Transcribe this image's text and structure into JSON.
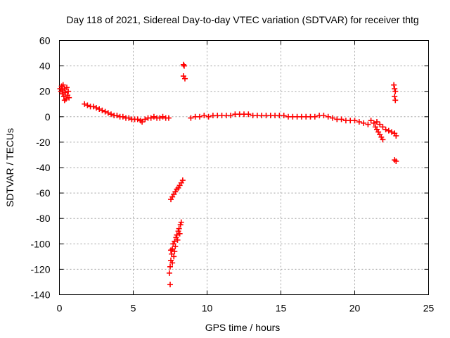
{
  "chart_data": {
    "type": "scatter",
    "title": "Day 118 of 2021, Sidereal Day-to-day VTEC variation (SDTVAR) for receiver thtg",
    "xlabel": "GPS time / hours",
    "ylabel": "SDTVAR / TECUs",
    "xlim": [
      0,
      25
    ],
    "ylim": [
      -140,
      60
    ],
    "xticks": [
      0,
      5,
      10,
      15,
      20,
      25
    ],
    "yticks": [
      60,
      40,
      20,
      0,
      -20,
      -40,
      -60,
      -80,
      -100,
      -120,
      -140
    ],
    "grid": true,
    "marker": "plus",
    "color": "#ff0000",
    "series": [
      {
        "points": [
          [
            0.05,
            22
          ],
          [
            0.1,
            20
          ],
          [
            0.15,
            24
          ],
          [
            0.2,
            18
          ],
          [
            0.25,
            25
          ],
          [
            0.3,
            16
          ],
          [
            0.35,
            22
          ],
          [
            0.4,
            19
          ],
          [
            0.45,
            14
          ],
          [
            0.5,
            23
          ],
          [
            0.55,
            17
          ],
          [
            0.6,
            20
          ],
          [
            0.65,
            15
          ],
          [
            0.2,
            21
          ],
          [
            0.35,
            13
          ],
          [
            1.7,
            10
          ],
          [
            1.9,
            9
          ],
          [
            2.1,
            8
          ],
          [
            2.3,
            8
          ],
          [
            2.5,
            7
          ],
          [
            2.7,
            6
          ],
          [
            2.9,
            5
          ],
          [
            3.1,
            4
          ],
          [
            3.3,
            3
          ],
          [
            3.5,
            2
          ],
          [
            3.7,
            1
          ],
          [
            3.9,
            1
          ],
          [
            4.1,
            0
          ],
          [
            4.3,
            0
          ],
          [
            4.5,
            -1
          ],
          [
            4.7,
            -1
          ],
          [
            4.9,
            -2
          ],
          [
            5.1,
            -2
          ],
          [
            5.3,
            -2
          ],
          [
            5.5,
            -3
          ],
          [
            5.6,
            -4
          ],
          [
            5.8,
            -2
          ],
          [
            6.0,
            -1
          ],
          [
            6.2,
            -1
          ],
          [
            6.4,
            0
          ],
          [
            6.6,
            -1
          ],
          [
            6.8,
            -1
          ],
          [
            7.0,
            0
          ],
          [
            7.2,
            -1
          ],
          [
            7.4,
            -1
          ],
          [
            7.55,
            -65
          ],
          [
            7.65,
            -63
          ],
          [
            7.75,
            -61
          ],
          [
            7.85,
            -59
          ],
          [
            7.95,
            -57
          ],
          [
            8.05,
            -56
          ],
          [
            8.15,
            -54
          ],
          [
            8.25,
            -52
          ],
          [
            8.35,
            -50
          ],
          [
            7.45,
            -123
          ],
          [
            7.5,
            -118
          ],
          [
            7.55,
            -113
          ],
          [
            7.6,
            -108
          ],
          [
            7.65,
            -104
          ],
          [
            7.7,
            -100
          ],
          [
            7.75,
            -110
          ],
          [
            7.8,
            -98
          ],
          [
            7.85,
            -102
          ],
          [
            7.9,
            -95
          ],
          [
            7.95,
            -93
          ],
          [
            8.0,
            -97
          ],
          [
            8.05,
            -90
          ],
          [
            8.1,
            -88
          ],
          [
            8.15,
            -92
          ],
          [
            8.2,
            -85
          ],
          [
            8.25,
            -83
          ],
          [
            7.55,
            -105
          ],
          [
            7.65,
            -115
          ],
          [
            7.8,
            -106
          ],
          [
            7.5,
            -132
          ],
          [
            8.4,
            41
          ],
          [
            8.45,
            40
          ],
          [
            8.4,
            32
          ],
          [
            8.5,
            30
          ],
          [
            8.9,
            -1
          ],
          [
            9.2,
            0
          ],
          [
            9.5,
            0
          ],
          [
            9.8,
            1
          ],
          [
            10.1,
            0
          ],
          [
            10.4,
            1
          ],
          [
            10.7,
            1
          ],
          [
            11.0,
            1
          ],
          [
            11.3,
            1
          ],
          [
            11.6,
            1
          ],
          [
            11.9,
            2
          ],
          [
            12.2,
            2
          ],
          [
            12.5,
            2
          ],
          [
            12.8,
            2
          ],
          [
            13.1,
            1
          ],
          [
            13.4,
            1
          ],
          [
            13.7,
            1
          ],
          [
            14.0,
            1
          ],
          [
            14.3,
            1
          ],
          [
            14.6,
            1
          ],
          [
            14.9,
            1
          ],
          [
            15.2,
            1
          ],
          [
            15.5,
            0
          ],
          [
            15.8,
            0
          ],
          [
            16.1,
            0
          ],
          [
            16.4,
            0
          ],
          [
            16.7,
            0
          ],
          [
            17.0,
            0
          ],
          [
            17.3,
            0
          ],
          [
            17.6,
            1
          ],
          [
            17.9,
            1
          ],
          [
            18.2,
            0
          ],
          [
            18.5,
            -1
          ],
          [
            18.8,
            -2
          ],
          [
            19.1,
            -2
          ],
          [
            19.4,
            -3
          ],
          [
            19.7,
            -3
          ],
          [
            20.0,
            -3
          ],
          [
            20.3,
            -4
          ],
          [
            20.6,
            -5
          ],
          [
            20.9,
            -6
          ],
          [
            21.1,
            -3
          ],
          [
            21.3,
            -5
          ],
          [
            21.4,
            -8
          ],
          [
            21.5,
            -10
          ],
          [
            21.6,
            -12
          ],
          [
            21.7,
            -14
          ],
          [
            21.8,
            -16
          ],
          [
            21.9,
            -18
          ],
          [
            21.5,
            -4
          ],
          [
            21.7,
            -6
          ],
          [
            21.9,
            -8
          ],
          [
            22.1,
            -10
          ],
          [
            22.3,
            -11
          ],
          [
            22.5,
            -12
          ],
          [
            22.7,
            -13
          ],
          [
            22.8,
            -15
          ],
          [
            22.65,
            25
          ],
          [
            22.7,
            22
          ],
          [
            22.75,
            20
          ],
          [
            22.7,
            16
          ],
          [
            22.75,
            13
          ],
          [
            22.7,
            -34
          ],
          [
            22.8,
            -35
          ]
        ]
      }
    ]
  }
}
